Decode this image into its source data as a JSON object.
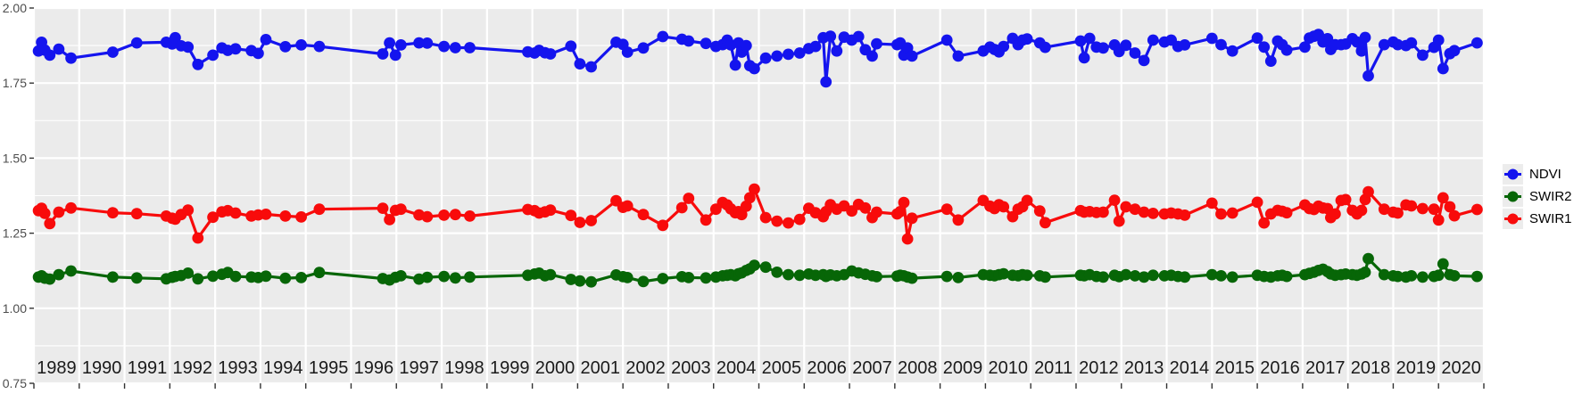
{
  "chart_data": {
    "type": "line",
    "title": "",
    "xlabel": "",
    "ylabel": "",
    "legend_position": "right",
    "grid": true,
    "panel_bg": "#EBEBEB",
    "grid_color": "#FFFFFF",
    "axis_text_color": "#4D4D4D",
    "x_tick_label_color": "#1A1A1A",
    "y_axis": {
      "range": [
        0.75,
        2.0
      ],
      "tick_labels": [
        "2.00",
        "1.75",
        "1.50",
        "1.25",
        "1.00",
        "0.75"
      ],
      "tick_values": [
        2.0,
        1.75,
        1.5,
        1.25,
        1.0,
        0.75
      ],
      "minor_step": 0.125
    },
    "x_axis": {
      "range": [
        1989,
        2021
      ],
      "tick_labels": [
        "1989",
        "1990",
        "1991",
        "1992",
        "1993",
        "1994",
        "1995",
        "1996",
        "1997",
        "1998",
        "1999",
        "2000",
        "2001",
        "2002",
        "2003",
        "2004",
        "2005",
        "2006",
        "2007",
        "2008",
        "2009",
        "2010",
        "2011",
        "2012",
        "2013",
        "2014",
        "2015",
        "2016",
        "2017",
        "2018",
        "2019",
        "2020"
      ]
    },
    "x": [
      1989.1,
      1989.17,
      1989.24,
      1989.35,
      1989.55,
      1989.82,
      1990.74,
      1991.27,
      1991.92,
      1992.05,
      1992.12,
      1992.25,
      1992.4,
      1992.62,
      1992.95,
      1993.15,
      1993.28,
      1993.45,
      1993.8,
      1993.95,
      1994.12,
      1994.55,
      1994.9,
      1995.3,
      1996.7,
      1996.85,
      1996.98,
      1997.1,
      1997.5,
      1997.68,
      1998.05,
      1998.3,
      1998.62,
      1999.9,
      2000.05,
      2000.15,
      2000.28,
      2000.4,
      2000.85,
      2001.05,
      2001.3,
      2001.85,
      2002.0,
      2002.1,
      2002.45,
      2002.88,
      2003.3,
      2003.45,
      2003.83,
      2004.05,
      2004.2,
      2004.3,
      2004.38,
      2004.48,
      2004.55,
      2004.62,
      2004.72,
      2004.8,
      2004.9,
      2005.15,
      2005.4,
      2005.65,
      2005.9,
      2006.1,
      2006.25,
      2006.42,
      2006.48,
      2006.58,
      2006.72,
      2006.88,
      2007.05,
      2007.2,
      2007.35,
      2007.5,
      2007.6,
      2008.05,
      2008.12,
      2008.2,
      2008.28,
      2008.38,
      2009.15,
      2009.4,
      2009.95,
      2010.1,
      2010.2,
      2010.3,
      2010.4,
      2010.6,
      2010.72,
      2010.82,
      2010.92,
      2011.2,
      2011.32,
      2012.1,
      2012.18,
      2012.3,
      2012.45,
      2012.6,
      2012.85,
      2012.95,
      2013.1,
      2013.3,
      2013.5,
      2013.7,
      2013.95,
      2014.1,
      2014.25,
      2014.4,
      2015.0,
      2015.2,
      2015.45,
      2016.0,
      2016.15,
      2016.3,
      2016.45,
      2016.55,
      2016.65,
      2017.05,
      2017.15,
      2017.25,
      2017.35,
      2017.45,
      2017.55,
      2017.62,
      2017.72,
      2017.85,
      2017.95,
      2018.1,
      2018.2,
      2018.3,
      2018.38,
      2018.45,
      2018.8,
      2019.0,
      2019.1,
      2019.28,
      2019.4,
      2019.65,
      2019.9,
      2020.0,
      2020.1,
      2020.25,
      2020.35,
      2020.85
    ],
    "series": [
      {
        "name": "NDVI",
        "color": "#1414EE",
        "values": [
          1.857,
          1.886,
          1.86,
          1.843,
          1.863,
          1.833,
          1.853,
          1.884,
          1.886,
          1.88,
          1.901,
          1.874,
          1.87,
          1.812,
          1.843,
          1.867,
          1.859,
          1.864,
          1.858,
          1.849,
          1.895,
          1.871,
          1.877,
          1.872,
          1.847,
          1.884,
          1.843,
          1.877,
          1.884,
          1.883,
          1.872,
          1.868,
          1.868,
          1.854,
          1.85,
          1.859,
          1.851,
          1.847,
          1.873,
          1.814,
          1.804,
          1.886,
          1.879,
          1.853,
          1.867,
          1.905,
          1.896,
          1.89,
          1.882,
          1.872,
          1.878,
          1.893,
          1.877,
          1.81,
          1.884,
          1.853,
          1.875,
          1.808,
          1.798,
          1.833,
          1.84,
          1.846,
          1.85,
          1.865,
          1.872,
          1.901,
          1.754,
          1.906,
          1.857,
          1.903,
          1.893,
          1.905,
          1.861,
          1.84,
          1.881,
          1.878,
          1.884,
          1.843,
          1.867,
          1.84,
          1.893,
          1.84,
          1.857,
          1.87,
          1.862,
          1.854,
          1.872,
          1.899,
          1.878,
          1.893,
          1.897,
          1.884,
          1.869,
          1.89,
          1.834,
          1.899,
          1.87,
          1.867,
          1.877,
          1.855,
          1.876,
          1.85,
          1.825,
          1.893,
          1.887,
          1.893,
          1.872,
          1.877,
          1.899,
          1.878,
          1.857,
          1.9,
          1.87,
          1.823,
          1.89,
          1.878,
          1.86,
          1.87,
          1.9,
          1.906,
          1.912,
          1.887,
          1.898,
          1.862,
          1.878,
          1.878,
          1.88,
          1.898,
          1.887,
          1.857,
          1.902,
          1.774,
          1.878,
          1.887,
          1.878,
          1.875,
          1.884,
          1.843,
          1.869,
          1.893,
          1.798,
          1.848,
          1.858,
          1.884
        ]
      },
      {
        "name": "SWIR2",
        "color": "#076607",
        "values": [
          1.104,
          1.108,
          1.1,
          1.097,
          1.112,
          1.124,
          1.104,
          1.101,
          1.098,
          1.103,
          1.106,
          1.109,
          1.117,
          1.098,
          1.107,
          1.113,
          1.119,
          1.106,
          1.104,
          1.102,
          1.107,
          1.1,
          1.102,
          1.119,
          1.099,
          1.094,
          1.103,
          1.108,
          1.097,
          1.103,
          1.106,
          1.101,
          1.104,
          1.11,
          1.114,
          1.117,
          1.108,
          1.112,
          1.096,
          1.091,
          1.088,
          1.111,
          1.105,
          1.102,
          1.089,
          1.099,
          1.105,
          1.102,
          1.101,
          1.104,
          1.108,
          1.11,
          1.112,
          1.108,
          1.115,
          1.118,
          1.126,
          1.131,
          1.143,
          1.137,
          1.12,
          1.112,
          1.11,
          1.114,
          1.11,
          1.112,
          1.106,
          1.111,
          1.108,
          1.112,
          1.124,
          1.118,
          1.113,
          1.108,
          1.105,
          1.107,
          1.11,
          1.108,
          1.104,
          1.1,
          1.106,
          1.102,
          1.112,
          1.11,
          1.108,
          1.112,
          1.115,
          1.11,
          1.108,
          1.112,
          1.11,
          1.108,
          1.104,
          1.11,
          1.108,
          1.112,
          1.106,
          1.104,
          1.11,
          1.105,
          1.112,
          1.108,
          1.104,
          1.11,
          1.108,
          1.11,
          1.106,
          1.104,
          1.112,
          1.108,
          1.104,
          1.11,
          1.106,
          1.104,
          1.108,
          1.11,
          1.106,
          1.112,
          1.116,
          1.12,
          1.126,
          1.13,
          1.122,
          1.114,
          1.11,
          1.112,
          1.114,
          1.112,
          1.11,
          1.114,
          1.12,
          1.165,
          1.112,
          1.108,
          1.106,
          1.104,
          1.108,
          1.104,
          1.106,
          1.11,
          1.148,
          1.112,
          1.108,
          1.106
        ]
      },
      {
        "name": "SWIR1",
        "color": "#F80B0B",
        "values": [
          1.325,
          1.333,
          1.316,
          1.282,
          1.32,
          1.334,
          1.318,
          1.315,
          1.307,
          1.3,
          1.297,
          1.312,
          1.327,
          1.234,
          1.303,
          1.321,
          1.325,
          1.317,
          1.307,
          1.311,
          1.313,
          1.307,
          1.304,
          1.33,
          1.333,
          1.295,
          1.326,
          1.33,
          1.311,
          1.305,
          1.31,
          1.312,
          1.307,
          1.329,
          1.325,
          1.317,
          1.321,
          1.327,
          1.309,
          1.286,
          1.292,
          1.358,
          1.336,
          1.341,
          1.312,
          1.276,
          1.335,
          1.366,
          1.294,
          1.33,
          1.352,
          1.344,
          1.331,
          1.318,
          1.322,
          1.312,
          1.34,
          1.368,
          1.397,
          1.302,
          1.29,
          1.284,
          1.296,
          1.333,
          1.318,
          1.305,
          1.322,
          1.345,
          1.33,
          1.341,
          1.324,
          1.346,
          1.334,
          1.302,
          1.32,
          1.314,
          1.322,
          1.352,
          1.231,
          1.3,
          1.33,
          1.294,
          1.359,
          1.34,
          1.332,
          1.345,
          1.338,
          1.305,
          1.33,
          1.338,
          1.359,
          1.324,
          1.285,
          1.325,
          1.32,
          1.322,
          1.319,
          1.32,
          1.36,
          1.29,
          1.338,
          1.33,
          1.32,
          1.316,
          1.314,
          1.317,
          1.314,
          1.31,
          1.35,
          1.314,
          1.317,
          1.353,
          1.284,
          1.314,
          1.326,
          1.323,
          1.318,
          1.344,
          1.332,
          1.329,
          1.34,
          1.334,
          1.332,
          1.302,
          1.314,
          1.359,
          1.362,
          1.326,
          1.314,
          1.326,
          1.362,
          1.388,
          1.33,
          1.32,
          1.317,
          1.344,
          1.341,
          1.332,
          1.33,
          1.294,
          1.368,
          1.338,
          1.308,
          1.329
        ]
      }
    ]
  },
  "legend": {
    "items": [
      {
        "label": "NDVI"
      },
      {
        "label": "SWIR2"
      },
      {
        "label": "SWIR1"
      }
    ]
  }
}
